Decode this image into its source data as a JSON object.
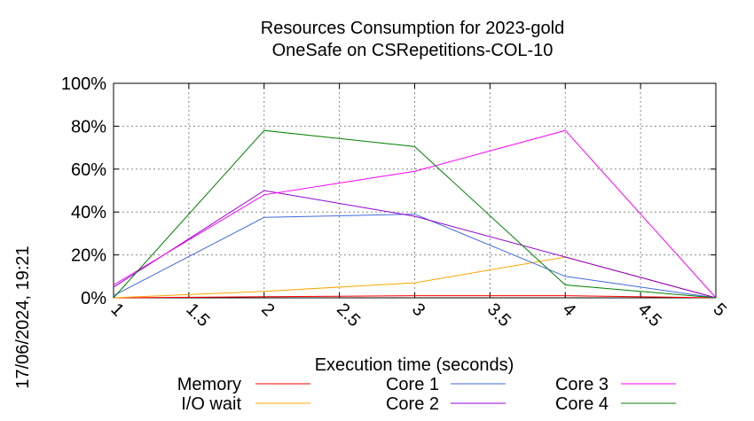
{
  "chart_data": {
    "type": "line",
    "title": "Resources Consumption for 2023-gold",
    "subtitle": "OneSafe on CSRepetitions-COL-10",
    "xlabel": "Execution time (seconds)",
    "ylabel": "",
    "side_label": "17/06/2024, 19:21",
    "xlim": [
      1,
      5
    ],
    "ylim": [
      0,
      100
    ],
    "x_ticks": [
      1,
      1.5,
      2,
      2.5,
      3,
      3.5,
      4,
      4.5,
      5
    ],
    "x_tick_labels": [
      "1",
      "1.5",
      "2",
      "2.5",
      "3",
      "3.5",
      "4",
      "4.5",
      "5"
    ],
    "y_ticks": [
      0,
      20,
      40,
      60,
      80,
      100
    ],
    "y_tick_labels": [
      "0%",
      "20%",
      "40%",
      "60%",
      "80%",
      "100%"
    ],
    "grid": true,
    "legend_position": "bottom",
    "series": [
      {
        "name": "Memory",
        "color": "#ff0000",
        "x": [
          1,
          2,
          3,
          4,
          5
        ],
        "y": [
          0,
          0.5,
          1,
          1,
          0
        ]
      },
      {
        "name": "I/O wait",
        "color": "#ffa500",
        "x": [
          1,
          2,
          3,
          4,
          5
        ],
        "y": [
          0,
          3,
          7,
          19,
          0
        ]
      },
      {
        "name": "Core 1",
        "color": "#4169e1",
        "x": [
          1,
          2,
          3,
          4,
          5
        ],
        "y": [
          1,
          37.5,
          39,
          10,
          0
        ]
      },
      {
        "name": "Core 2",
        "color": "#9400d3",
        "x": [
          1,
          2,
          3,
          4,
          5
        ],
        "y": [
          5,
          50,
          38,
          19,
          0
        ]
      },
      {
        "name": "Core 3",
        "color": "#ff00ff",
        "x": [
          1,
          2,
          3,
          4,
          5
        ],
        "y": [
          6,
          48,
          59,
          78,
          0
        ]
      },
      {
        "name": "Core 4",
        "color": "#008000",
        "x": [
          1,
          2,
          3,
          4,
          5
        ],
        "y": [
          0,
          78,
          70.5,
          6,
          0
        ]
      }
    ]
  }
}
